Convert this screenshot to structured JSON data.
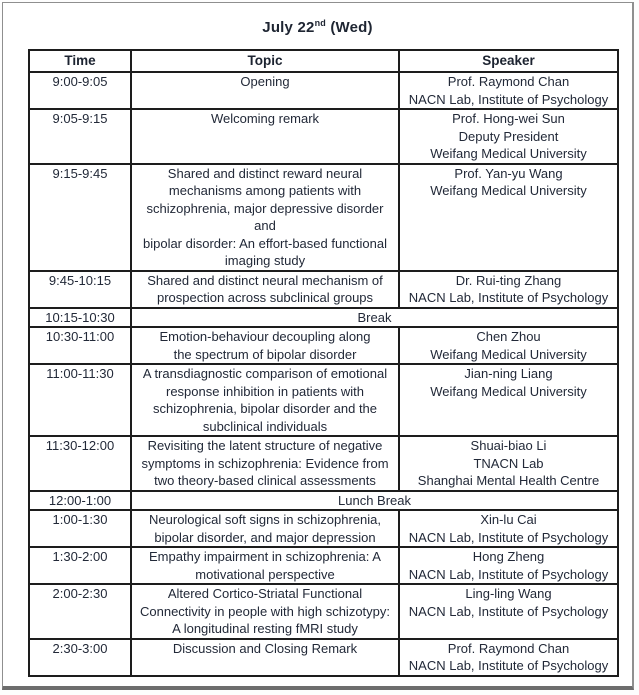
{
  "title": {
    "prefix": "July 22",
    "superscript": "nd",
    "suffix": " (Wed)"
  },
  "table": {
    "headers": [
      "Time",
      "Topic",
      "Speaker"
    ],
    "rows": [
      {
        "time": "9:00-9:05",
        "topic": "Opening",
        "speaker": "Prof. Raymond Chan\nNACN Lab, Institute of Psychology"
      },
      {
        "time": "9:05-9:15",
        "topic": "Welcoming remark",
        "speaker": "Prof. Hong-wei Sun\nDeputy President\nWeifang Medical University"
      },
      {
        "time": "9:15-9:45",
        "topic": "Shared and distinct reward neural\nmechanisms among patients with\nschizophrenia, major depressive disorder and\nbipolar disorder: An effort-based functional\nimaging study",
        "speaker": "Prof. Yan-yu Wang\nWeifang Medical University"
      },
      {
        "time": "9:45-10:15",
        "topic": "Shared and distinct neural mechanism of\nprospection across subclinical groups",
        "speaker": "Dr. Rui-ting Zhang\nNACN Lab, Institute of Psychology"
      },
      {
        "time": "10:15-10:30",
        "merged": "Break"
      },
      {
        "time": "10:30-11:00",
        "topic": "Emotion-behaviour decoupling along\nthe spectrum of bipolar disorder",
        "speaker": "Chen Zhou\nWeifang Medical University"
      },
      {
        "time": "11:00-11:30",
        "topic": "A transdiagnostic comparison of emotional\nresponse inhibition in patients with\nschizophrenia, bipolar disorder and the\nsubclinical individuals",
        "speaker": "Jian-ning Liang\nWeifang Medical University"
      },
      {
        "time": "11:30-12:00",
        "topic": "Revisiting the latent structure of negative\nsymptoms in schizophrenia: Evidence from\ntwo theory-based clinical assessments",
        "speaker": "Shuai-biao Li\nTNACN Lab\nShanghai Mental Health Centre"
      },
      {
        "time": "12:00-1:00",
        "merged": "Lunch Break"
      },
      {
        "time": "1:00-1:30",
        "topic": "Neurological soft signs in schizophrenia,\nbipolar disorder, and major depression",
        "speaker": "Xin-lu Cai\nNACN Lab, Institute of Psychology"
      },
      {
        "time": "1:30-2:00",
        "topic": "Empathy impairment in schizophrenia: A\nmotivational perspective",
        "speaker": "Hong Zheng\nNACN Lab, Institute of Psychology"
      },
      {
        "time": "2:00-2:30",
        "topic": "Altered Cortico-Striatal Functional\nConnectivity in people with high schizotypy:\nA longitudinal resting fMRI study",
        "speaker": "Ling-ling Wang\nNACN Lab, Institute of Psychology"
      },
      {
        "time": "2:30-3:00",
        "topic": "Discussion and Closing Remark",
        "speaker": "Prof. Raymond Chan\nNACN Lab, Institute of Psychology"
      }
    ]
  }
}
